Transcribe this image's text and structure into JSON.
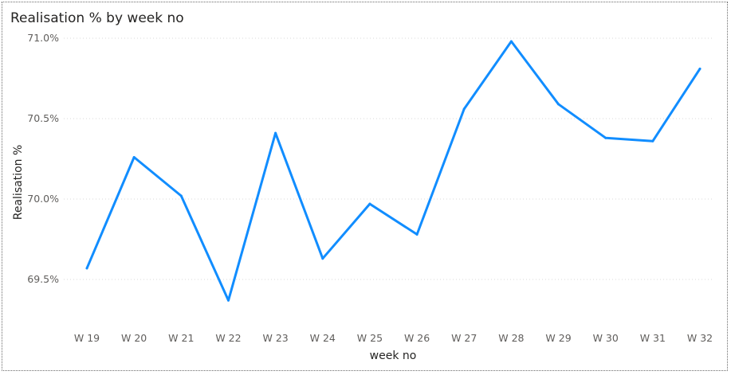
{
  "chart_data": {
    "type": "line",
    "title": "Realisation % by week no",
    "xlabel": "week no",
    "ylabel": "Realisation %",
    "categories": [
      "W 19",
      "W 20",
      "W 21",
      "W 22",
      "W 23",
      "W 24",
      "W 25",
      "W 26",
      "W 27",
      "W 28",
      "W 29",
      "W 30",
      "W 31",
      "W 32"
    ],
    "series": [
      {
        "values": [
          69.57,
          70.26,
          70.02,
          69.37,
          70.41,
          69.63,
          69.97,
          69.78,
          70.56,
          70.98,
          70.59,
          70.38,
          70.36,
          70.81
        ]
      }
    ],
    "yticks": [
      69.5,
      70.0,
      70.5,
      71.0
    ],
    "ytick_labels": [
      "69.5%",
      "70.0%",
      "70.5%",
      "71.0%"
    ],
    "ylim": [
      69.5,
      71.0
    ],
    "grid": true,
    "line_color": "#118DFF",
    "grid_color": "#d9d9d9",
    "text_color": "#605e5c"
  }
}
